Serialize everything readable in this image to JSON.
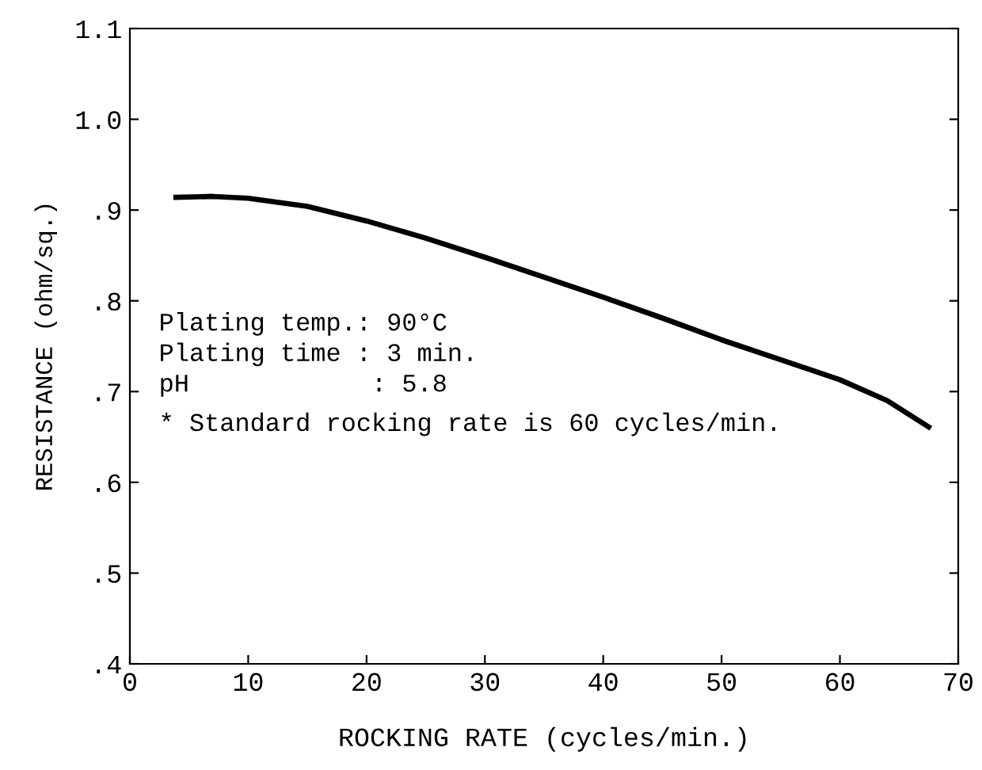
{
  "chart_data": {
    "type": "line",
    "xlabel": "ROCKING RATE (cycles/min.)",
    "ylabel": "RESISTANCE (ohm/sq.)",
    "x": [
      3.9,
      7,
      10,
      15,
      20,
      25,
      30,
      35,
      40,
      45,
      50,
      55,
      60,
      64,
      67.5
    ],
    "series": [
      {
        "color": "#000000",
        "values": [
          0.914,
          0.915,
          0.913,
          0.904,
          0.888,
          0.869,
          0.848,
          0.826,
          0.804,
          0.781,
          0.757,
          0.735,
          0.713,
          0.69,
          0.661
        ]
      }
    ],
    "xlim": [
      0,
      70
    ],
    "xticks": [
      0,
      10,
      20,
      30,
      40,
      50,
      60,
      70
    ],
    "ylim": [
      0.4,
      1.1
    ],
    "yticks": [
      {
        "value": 0.4,
        "label": ".4"
      },
      {
        "value": 0.5,
        "label": ".5"
      },
      {
        "value": 0.6,
        "label": ".6"
      },
      {
        "value": 0.7,
        "label": ".7"
      },
      {
        "value": 0.8,
        "label": ".8"
      },
      {
        "value": 0.9,
        "label": ".9"
      },
      {
        "value": 1.0,
        "label": "1.0"
      },
      {
        "value": 1.1,
        "label": "1.1"
      }
    ],
    "annotations": [
      "Plating temp.: 90°C",
      "Plating time : 3 min.",
      "pH            : 5.8",
      "* Standard rocking rate is 60 cycles/min."
    ],
    "grid": false,
    "legend": false,
    "marker": "none",
    "line_style": "solid"
  }
}
